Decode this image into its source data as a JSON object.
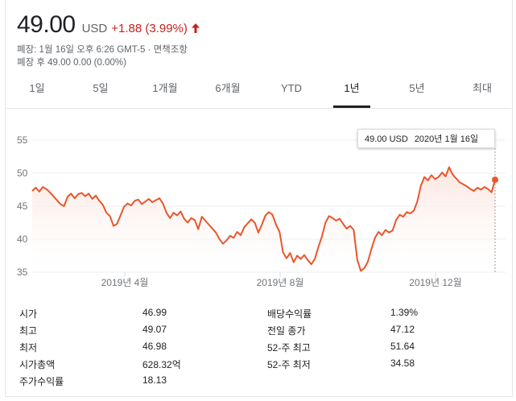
{
  "quote": {
    "price": "49.00",
    "currency": "USD",
    "change": "+1.88 (3.99%)",
    "close_line": "폐장: 1월 16일 오후 6:26 GMT-5 · 면책조항",
    "after_hours_line": "폐장 후 49.00 0.00 (0.00%)",
    "accent_color": "#c5221f",
    "arrow_icon": "up-arrow-icon"
  },
  "range_tabs": [
    {
      "label": "1일",
      "active": false
    },
    {
      "label": "5일",
      "active": false
    },
    {
      "label": "1개월",
      "active": false
    },
    {
      "label": "6개월",
      "active": false
    },
    {
      "label": "YTD",
      "active": false
    },
    {
      "label": "1년",
      "active": true
    },
    {
      "label": "5년",
      "active": false
    },
    {
      "label": "최대",
      "active": false
    }
  ],
  "tooltip": {
    "price": "49.00 USD",
    "date": "2020년 1월 16일"
  },
  "chart_data": {
    "type": "area",
    "ylim": [
      35,
      55
    ],
    "y_ticks": [
      "55",
      "50",
      "45",
      "40",
      "35"
    ],
    "x_tick_labels": [
      "2019년 4월",
      "2019년 8월",
      "2019년 12월"
    ],
    "grid": true,
    "line_color": "#e8562b",
    "series": [
      {
        "values": [
          47.3,
          47.8,
          47.2,
          47.9,
          47.6,
          47.1,
          46.5,
          45.9,
          45.3,
          45.0,
          46.4,
          46.9,
          46.2,
          46.8,
          47.0,
          46.5,
          46.9,
          46.1,
          46.6,
          45.8,
          45.2,
          44.0,
          43.5,
          42.0,
          42.3,
          43.6,
          44.9,
          45.4,
          45.1,
          45.8,
          46.0,
          45.3,
          45.7,
          46.1,
          45.6,
          45.9,
          46.2,
          45.4,
          44.0,
          43.2,
          44.0,
          43.6,
          44.2,
          43.1,
          42.5,
          43.2,
          42.9,
          41.5,
          43.4,
          42.8,
          42.2,
          41.6,
          41.0,
          40.0,
          39.3,
          39.8,
          40.5,
          40.2,
          41.1,
          40.6,
          41.8,
          42.4,
          43.0,
          42.5,
          41.0,
          42.2,
          43.6,
          44.1,
          43.7,
          42.2,
          41.1,
          38.0,
          37.1,
          37.9,
          36.5,
          37.5,
          37.0,
          37.6,
          36.8,
          36.2,
          37.0,
          38.8,
          40.4,
          42.5,
          43.5,
          43.2,
          42.8,
          43.1,
          42.3,
          41.6,
          42.0,
          41.4,
          36.9,
          35.2,
          35.6,
          36.6,
          38.5,
          40.2,
          41.1,
          40.6,
          41.4,
          41.0,
          41.3,
          42.9,
          43.7,
          43.4,
          44.1,
          43.9,
          44.3,
          45.7,
          48.1,
          49.4,
          48.9,
          49.7,
          49.1,
          49.4,
          50.1,
          49.5,
          50.9,
          49.8,
          49.2,
          48.6,
          48.3,
          48.0,
          47.6,
          47.3,
          47.8,
          47.5,
          47.9,
          47.6,
          47.1,
          49.0
        ]
      }
    ]
  },
  "stats": [
    {
      "label": "시가",
      "value": "46.99"
    },
    {
      "label": "최고",
      "value": "49.07"
    },
    {
      "label": "최저",
      "value": "46.98"
    },
    {
      "label": "시가총액",
      "value": "628.32억"
    },
    {
      "label": "주가수익률",
      "value": "18.13"
    },
    {
      "label": "배당수익률",
      "value": "1.39%"
    },
    {
      "label": "전일 종가",
      "value": "47.12"
    },
    {
      "label": "52-주 최고",
      "value": "51.64"
    },
    {
      "label": "52-주 최저",
      "value": "34.58"
    }
  ]
}
